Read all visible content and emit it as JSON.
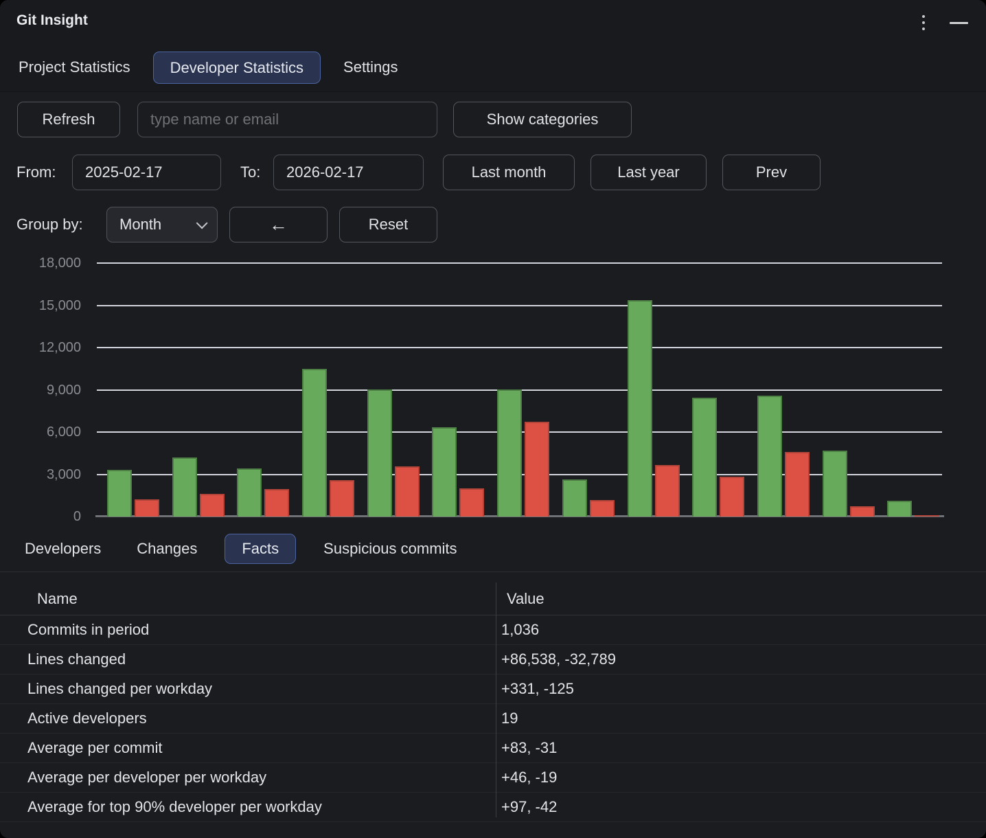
{
  "window": {
    "title": "Git Insight"
  },
  "nav_tabs": {
    "items": [
      {
        "label": "Project Statistics",
        "selected": false
      },
      {
        "label": "Developer Statistics",
        "selected": true
      },
      {
        "label": "Settings",
        "selected": false
      }
    ]
  },
  "toolbar": {
    "refresh_label": "Refresh",
    "search_placeholder": "type name or email",
    "show_categories_label": "Show categories"
  },
  "date_range": {
    "from_label": "From:",
    "from_value": "2025-02-17",
    "to_label": "To:",
    "to_value": "2026-02-17",
    "last_month_label": "Last month",
    "last_year_label": "Last year",
    "prev_label": "Prev"
  },
  "group_by": {
    "label": "Group by:",
    "selected_option": "Month",
    "back_label": "←",
    "reset_label": "Reset"
  },
  "chart_data": {
    "type": "bar",
    "title": "",
    "x_axis_labels": "none",
    "groups": 13,
    "series": [
      {
        "name": "green",
        "color": "#68aa5c",
        "border": "#4e8045",
        "values": [
          3300,
          4200,
          3400,
          10500,
          9000,
          6350,
          9000,
          2650,
          15350,
          8450,
          8600,
          4700,
          1100
        ]
      },
      {
        "name": "red",
        "color": "#dd5145",
        "border": "#b2443a",
        "values": [
          1200,
          1600,
          1950,
          2600,
          3550,
          2000,
          6750,
          1150,
          3650,
          2850,
          4600,
          750,
          100
        ]
      }
    ],
    "ylim": [
      0,
      18000
    ],
    "ytick_step": 3000,
    "ytick_labels": [
      "0",
      "3,000",
      "6,000",
      "9,000",
      "12,000",
      "15,000",
      "18,000"
    ],
    "grid": true,
    "legend": "none"
  },
  "view_tabs": {
    "items": [
      {
        "label": "Developers",
        "selected": false
      },
      {
        "label": "Changes",
        "selected": false
      },
      {
        "label": "Facts",
        "selected": true
      },
      {
        "label": "Suspicious commits",
        "selected": false
      }
    ]
  },
  "facts_table": {
    "columns": [
      "Name",
      "Value"
    ],
    "rows": [
      {
        "name": "Commits in period",
        "value": "1,036"
      },
      {
        "name": "Lines changed",
        "value": "+86,538, -32,789"
      },
      {
        "name": "Lines changed per workday",
        "value": "+331, -125"
      },
      {
        "name": "Active developers",
        "value": "19"
      },
      {
        "name": "Average per commit",
        "value": "+83, -31"
      },
      {
        "name": "Average per developer per workday",
        "value": "+46, -19"
      },
      {
        "name": "Average for top 90% developer per workday",
        "value": "+97, -42"
      }
    ]
  },
  "colors": {
    "app_background": "#1b1c20",
    "header_background": "#191a1e",
    "selected_tab_background": "#2a3450",
    "selected_tab_border": "#4c64a0",
    "bar_green": "#68aa5c",
    "bar_red": "#dd5145",
    "gridline": "#e2e5ee",
    "axis_text": "#8a8d93"
  }
}
